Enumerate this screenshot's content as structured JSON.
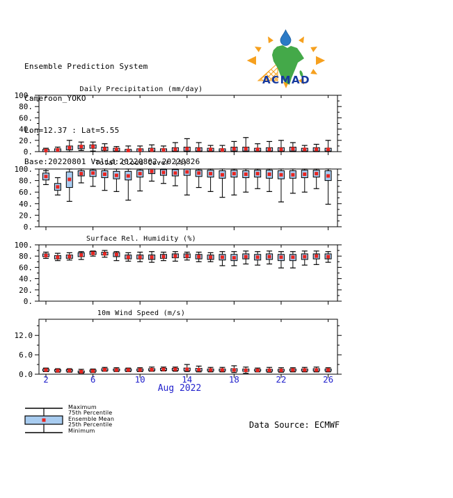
{
  "header": {
    "line1": "Ensemble Prediction System",
    "line2": "Cameroon_YOKO",
    "line3": "Lon=12.37 : Lat=5.55",
    "line4": "Base:20220801 Valid:20220802-20220826"
  },
  "logo": {
    "text": "ACMAD",
    "colors": {
      "text": "#16399e",
      "africa": "#44a949",
      "drop": "#2b7ac6",
      "rays": "#f6a01e"
    }
  },
  "footer": {
    "data_source": "Data Source: ECMWF"
  },
  "legend": {
    "items": [
      "Maximum",
      "75th Percentile",
      "Ensemble Mean",
      "25th Percentile",
      "Minimum"
    ]
  },
  "axis": {
    "x_tick_days": [
      2,
      6,
      10,
      14,
      18,
      22,
      26
    ],
    "x_tick_labels": [
      "2",
      "6",
      "10",
      "14",
      "18",
      "22",
      "26"
    ],
    "x_label": "Aug 2022",
    "label_color": "#2323cd"
  },
  "style": {
    "box_fill": "#a8ccf0",
    "mean_color": "#e8251f",
    "line_color": "#000000"
  },
  "chart_data": [
    {
      "type": "boxplot",
      "title": "Daily Precipitation (mm/day)",
      "ylim": [
        0,
        100
      ],
      "yticks": [
        0,
        20,
        40,
        60,
        80,
        100
      ],
      "ytick_labels": [
        "0.",
        "20.",
        "40.",
        "60.",
        "80.",
        "100."
      ],
      "minor_step": 10,
      "x": [
        2,
        3,
        4,
        5,
        6,
        7,
        8,
        9,
        10,
        11,
        12,
        13,
        14,
        15,
        16,
        17,
        18,
        19,
        20,
        21,
        22,
        23,
        24,
        25,
        26
      ],
      "series": [
        {
          "name": "Minimum",
          "values": [
            0,
            0,
            0,
            2,
            1,
            0,
            0,
            0,
            0,
            0,
            0,
            0,
            0,
            0,
            0,
            0,
            0,
            0,
            0,
            0,
            0,
            0,
            0,
            0,
            0
          ]
        },
        {
          "name": "25th Percentile",
          "values": [
            0,
            0,
            3,
            5,
            6,
            2,
            1,
            0,
            0,
            1,
            0,
            1,
            1,
            1,
            1,
            1,
            1,
            1,
            1,
            1,
            1,
            1,
            1,
            1,
            1
          ]
        },
        {
          "name": "Ensemble Mean",
          "values": [
            2,
            3,
            7,
            9,
            9,
            5,
            4,
            2,
            3,
            3,
            3,
            4,
            5,
            4,
            4,
            3,
            5,
            5,
            4,
            4,
            4,
            5,
            4,
            4,
            4
          ]
        },
        {
          "name": "75th Percentile",
          "values": [
            4,
            5,
            10,
            11,
            12,
            8,
            6,
            4,
            5,
            6,
            5,
            7,
            8,
            7,
            6,
            5,
            8,
            8,
            6,
            7,
            7,
            8,
            6,
            7,
            6
          ]
        },
        {
          "name": "Maximum",
          "values": [
            6,
            8,
            20,
            17,
            17,
            14,
            9,
            10,
            10,
            12,
            10,
            16,
            23,
            16,
            11,
            11,
            18,
            25,
            14,
            18,
            20,
            16,
            11,
            13,
            20
          ]
        }
      ]
    },
    {
      "type": "boxplot",
      "title": "Total Cloud Cover (%)",
      "ylim": [
        0,
        100
      ],
      "yticks": [
        0,
        20,
        40,
        60,
        80,
        100
      ],
      "ytick_labels": [
        "0.",
        "20.",
        "40.",
        "60.",
        "80.",
        "100."
      ],
      "minor_step": 10,
      "x": [
        2,
        3,
        4,
        5,
        6,
        7,
        8,
        9,
        10,
        11,
        12,
        13,
        14,
        15,
        16,
        17,
        18,
        19,
        20,
        21,
        22,
        23,
        24,
        25,
        26
      ],
      "series": [
        {
          "name": "Minimum",
          "values": [
            73,
            55,
            44,
            76,
            70,
            63,
            61,
            46,
            62,
            79,
            75,
            71,
            55,
            68,
            61,
            51,
            55,
            60,
            66,
            61,
            43,
            58,
            60,
            66,
            39
          ]
        },
        {
          "name": "25th Percentile",
          "values": [
            81,
            63,
            68,
            88,
            87,
            85,
            83,
            81,
            86,
            92,
            89,
            88,
            89,
            87,
            86,
            84,
            86,
            85,
            86,
            84,
            83,
            84,
            85,
            86,
            80
          ]
        },
        {
          "name": "Ensemble Mean",
          "values": [
            87,
            69,
            82,
            92,
            93,
            91,
            89,
            88,
            92,
            96,
            94,
            93,
            95,
            93,
            92,
            90,
            92,
            91,
            92,
            91,
            90,
            90,
            91,
            92,
            88
          ]
        },
        {
          "name": "75th Percentile",
          "values": [
            93,
            75,
            95,
            97,
            98,
            97,
            96,
            96,
            98,
            100,
            99,
            99,
            100,
            98,
            98,
            97,
            98,
            97,
            98,
            98,
            97,
            97,
            98,
            98,
            97
          ]
        },
        {
          "name": "Maximum",
          "values": [
            97,
            85,
            100,
            100,
            100,
            100,
            100,
            100,
            100,
            100,
            100,
            100,
            100,
            100,
            100,
            100,
            100,
            100,
            100,
            100,
            100,
            100,
            100,
            100,
            100
          ]
        }
      ]
    },
    {
      "type": "boxplot",
      "title": "Surface Rel. Humidity (%)",
      "ylim": [
        0,
        100
      ],
      "yticks": [
        0,
        20,
        40,
        60,
        80,
        100
      ],
      "ytick_labels": [
        "0.",
        "20.",
        "40.",
        "60.",
        "80.",
        "100."
      ],
      "minor_step": 10,
      "x": [
        2,
        3,
        4,
        5,
        6,
        7,
        8,
        9,
        10,
        11,
        12,
        13,
        14,
        15,
        16,
        17,
        18,
        19,
        20,
        21,
        22,
        23,
        24,
        25,
        26
      ],
      "series": [
        {
          "name": "Minimum",
          "values": [
            76,
            72,
            73,
            74,
            80,
            78,
            72,
            71,
            70,
            69,
            72,
            71,
            73,
            70,
            70,
            63,
            63,
            66,
            64,
            66,
            59,
            59,
            64,
            65,
            69
          ]
        },
        {
          "name": "25th Percentile",
          "values": [
            79,
            75,
            76,
            79,
            83,
            82,
            79,
            75,
            75,
            74,
            76,
            77,
            77,
            75,
            74,
            73,
            72,
            75,
            73,
            74,
            72,
            72,
            74,
            75,
            75
          ]
        },
        {
          "name": "Ensemble Mean",
          "values": [
            81,
            78,
            79,
            82,
            85,
            84,
            83,
            78,
            78,
            78,
            79,
            80,
            80,
            79,
            78,
            78,
            77,
            79,
            78,
            79,
            78,
            78,
            79,
            80,
            79
          ]
        },
        {
          "name": "75th Percentile",
          "values": [
            84,
            81,
            82,
            86,
            88,
            87,
            86,
            82,
            82,
            82,
            83,
            84,
            84,
            83,
            82,
            83,
            83,
            84,
            83,
            84,
            83,
            83,
            84,
            84,
            84
          ]
        },
        {
          "name": "Maximum",
          "values": [
            87,
            85,
            86,
            88,
            89,
            90,
            88,
            86,
            87,
            88,
            87,
            88,
            87,
            87,
            86,
            88,
            88,
            89,
            88,
            89,
            88,
            88,
            89,
            89,
            88
          ]
        }
      ]
    },
    {
      "type": "boxplot",
      "title": "10m Wind Speed (m/s)",
      "ylim": [
        0,
        17
      ],
      "yticks": [
        0,
        6,
        12
      ],
      "ytick_labels": [
        "0.0",
        "6.0",
        "12.0"
      ],
      "minor_step": 3,
      "x": [
        2,
        3,
        4,
        5,
        6,
        7,
        8,
        9,
        10,
        11,
        12,
        13,
        14,
        15,
        16,
        17,
        18,
        19,
        20,
        21,
        22,
        23,
        24,
        25,
        26
      ],
      "series": [
        {
          "name": "Minimum",
          "values": [
            0.8,
            0.6,
            0.6,
            0.3,
            0.5,
            0.9,
            0.8,
            0.8,
            0.8,
            0.9,
            1.0,
            0.9,
            0.8,
            0.7,
            0.7,
            0.7,
            0.5,
            0.3,
            0.7,
            0.6,
            0.6,
            0.7,
            0.7,
            0.7,
            0.7
          ]
        },
        {
          "name": "25th Percentile",
          "values": [
            1.0,
            0.9,
            0.9,
            0.5,
            0.8,
            1.1,
            1.1,
            1.0,
            1.0,
            1.1,
            1.2,
            1.2,
            1.1,
            1.0,
            1.0,
            1.0,
            0.9,
            0.9,
            1.0,
            0.9,
            0.9,
            1.0,
            1.0,
            1.0,
            1.0
          ]
        },
        {
          "name": "Ensemble Mean",
          "values": [
            1.3,
            1.1,
            1.1,
            0.8,
            1.0,
            1.4,
            1.3,
            1.3,
            1.3,
            1.4,
            1.5,
            1.5,
            1.5,
            1.4,
            1.3,
            1.3,
            1.3,
            1.2,
            1.2,
            1.2,
            1.2,
            1.3,
            1.3,
            1.3,
            1.3
          ]
        },
        {
          "name": "75th Percentile",
          "values": [
            1.6,
            1.4,
            1.4,
            1.0,
            1.3,
            1.7,
            1.6,
            1.6,
            1.6,
            1.7,
            1.8,
            1.8,
            1.9,
            1.8,
            1.6,
            1.6,
            1.7,
            1.6,
            1.5,
            1.5,
            1.5,
            1.6,
            1.6,
            1.7,
            1.6
          ]
        },
        {
          "name": "Maximum",
          "values": [
            1.9,
            1.7,
            1.7,
            1.5,
            1.6,
            2.1,
            2.0,
            1.9,
            2.0,
            2.2,
            2.2,
            2.2,
            3.0,
            2.5,
            2.1,
            2.1,
            2.6,
            2.2,
            1.9,
            2.1,
            2.0,
            2.0,
            2.1,
            2.2,
            2.0
          ]
        }
      ]
    }
  ]
}
